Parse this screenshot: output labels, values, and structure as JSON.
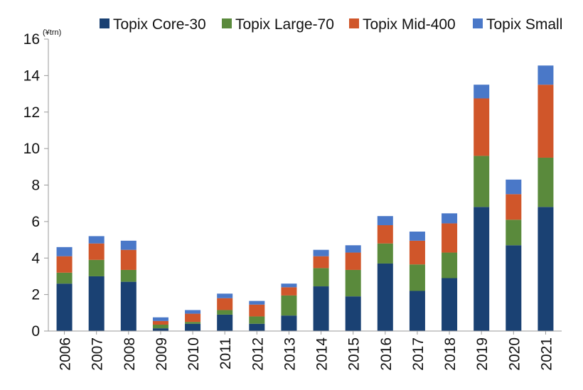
{
  "chart_data": {
    "type": "bar",
    "stacked": true,
    "y_unit": "(¥trn)",
    "categories": [
      "2006",
      "2007",
      "2008",
      "2009",
      "2010",
      "2011",
      "2012",
      "2013",
      "2014",
      "2015",
      "2016",
      "2017",
      "2018",
      "2019",
      "2020",
      "2021"
    ],
    "series": [
      {
        "name": "Topix Core-30",
        "color": "#1a4173",
        "values": [
          2.6,
          3.0,
          2.7,
          0.15,
          0.4,
          0.9,
          0.4,
          0.85,
          2.45,
          1.9,
          3.7,
          2.2,
          2.9,
          6.8,
          4.7,
          6.8
        ]
      },
      {
        "name": "Topix Large-70",
        "color": "#5a8a3c",
        "values": [
          0.6,
          0.9,
          0.65,
          0.2,
          0.1,
          0.25,
          0.4,
          1.1,
          1.0,
          1.45,
          1.1,
          1.45,
          1.4,
          2.8,
          1.4,
          2.7
        ]
      },
      {
        "name": "Topix Mid-400",
        "color": "#d0562a",
        "values": [
          0.9,
          0.9,
          1.1,
          0.2,
          0.45,
          0.65,
          0.65,
          0.45,
          0.65,
          0.95,
          1.0,
          1.3,
          1.6,
          3.15,
          1.4,
          4.0
        ]
      },
      {
        "name": "Topix Small",
        "color": "#4a78c8",
        "values": [
          0.5,
          0.4,
          0.5,
          0.2,
          0.2,
          0.25,
          0.2,
          0.2,
          0.35,
          0.4,
          0.5,
          0.5,
          0.55,
          0.75,
          0.8,
          1.05
        ]
      }
    ],
    "ylim": [
      0,
      16
    ],
    "yticks": [
      "0",
      "2",
      "4",
      "6",
      "8",
      "10",
      "12",
      "14",
      "16"
    ],
    "grid": false,
    "legend_position": "top"
  }
}
